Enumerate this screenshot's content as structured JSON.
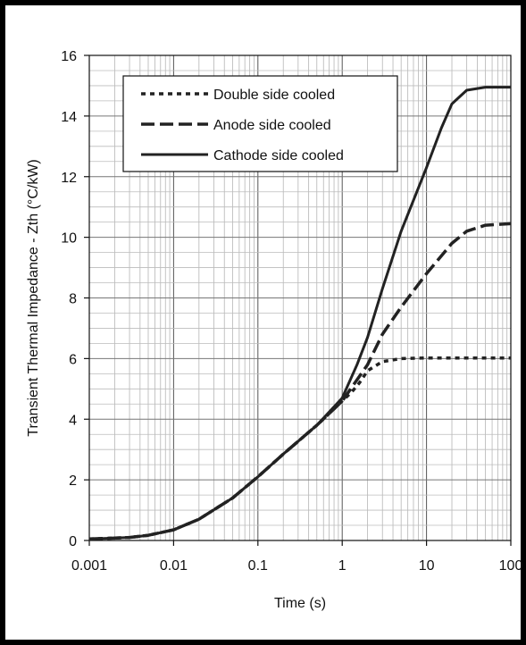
{
  "chart_data": {
    "type": "line",
    "title": "",
    "xlabel": "Time (s)",
    "ylabel": "Transient Thermal Impedance - Zth (°C/kW)",
    "x_scale": "log",
    "xlim": [
      0.001,
      100
    ],
    "ylim": [
      0,
      16
    ],
    "x_ticks": [
      0.001,
      0.01,
      0.1,
      1,
      10,
      100
    ],
    "x_tick_labels": [
      "0.001",
      "0.01",
      "0.1",
      "1",
      "10",
      "100"
    ],
    "y_ticks": [
      0,
      2,
      4,
      6,
      8,
      10,
      12,
      14,
      16
    ],
    "y_tick_labels": [
      "0",
      "2",
      "4",
      "6",
      "8",
      "10",
      "12",
      "14",
      "16"
    ],
    "grid": true,
    "legend_position": "top-left",
    "series": [
      {
        "name": "Double side cooled",
        "style": "dotted",
        "color": "#222222",
        "x": [
          0.001,
          0.002,
          0.003,
          0.005,
          0.01,
          0.02,
          0.05,
          0.1,
          0.2,
          0.5,
          1,
          1.3,
          1.6,
          2,
          3,
          5,
          10,
          20,
          50,
          100
        ],
        "y": [
          0.05,
          0.08,
          0.1,
          0.17,
          0.35,
          0.7,
          1.4,
          2.1,
          2.85,
          3.8,
          4.6,
          4.9,
          5.2,
          5.6,
          5.9,
          6.0,
          6.02,
          6.02,
          6.02,
          6.02
        ]
      },
      {
        "name": "Anode side cooled",
        "style": "dashed",
        "color": "#222222",
        "x": [
          0.001,
          0.002,
          0.003,
          0.005,
          0.01,
          0.02,
          0.05,
          0.1,
          0.2,
          0.5,
          1,
          1.5,
          2,
          3,
          5,
          10,
          20,
          30,
          50,
          100
        ],
        "y": [
          0.05,
          0.08,
          0.1,
          0.17,
          0.35,
          0.7,
          1.4,
          2.1,
          2.85,
          3.8,
          4.6,
          5.3,
          5.8,
          6.8,
          7.7,
          8.8,
          9.8,
          10.2,
          10.4,
          10.45
        ]
      },
      {
        "name": "Cathode side cooled",
        "style": "solid",
        "color": "#222222",
        "x": [
          0.001,
          0.002,
          0.003,
          0.005,
          0.01,
          0.02,
          0.05,
          0.1,
          0.2,
          0.5,
          1,
          1.5,
          2,
          3,
          5,
          10,
          15,
          20,
          30,
          50,
          100
        ],
        "y": [
          0.05,
          0.08,
          0.1,
          0.17,
          0.35,
          0.7,
          1.4,
          2.1,
          2.85,
          3.8,
          4.7,
          5.8,
          6.7,
          8.3,
          10.2,
          12.3,
          13.6,
          14.4,
          14.85,
          14.95,
          14.95
        ]
      }
    ]
  }
}
